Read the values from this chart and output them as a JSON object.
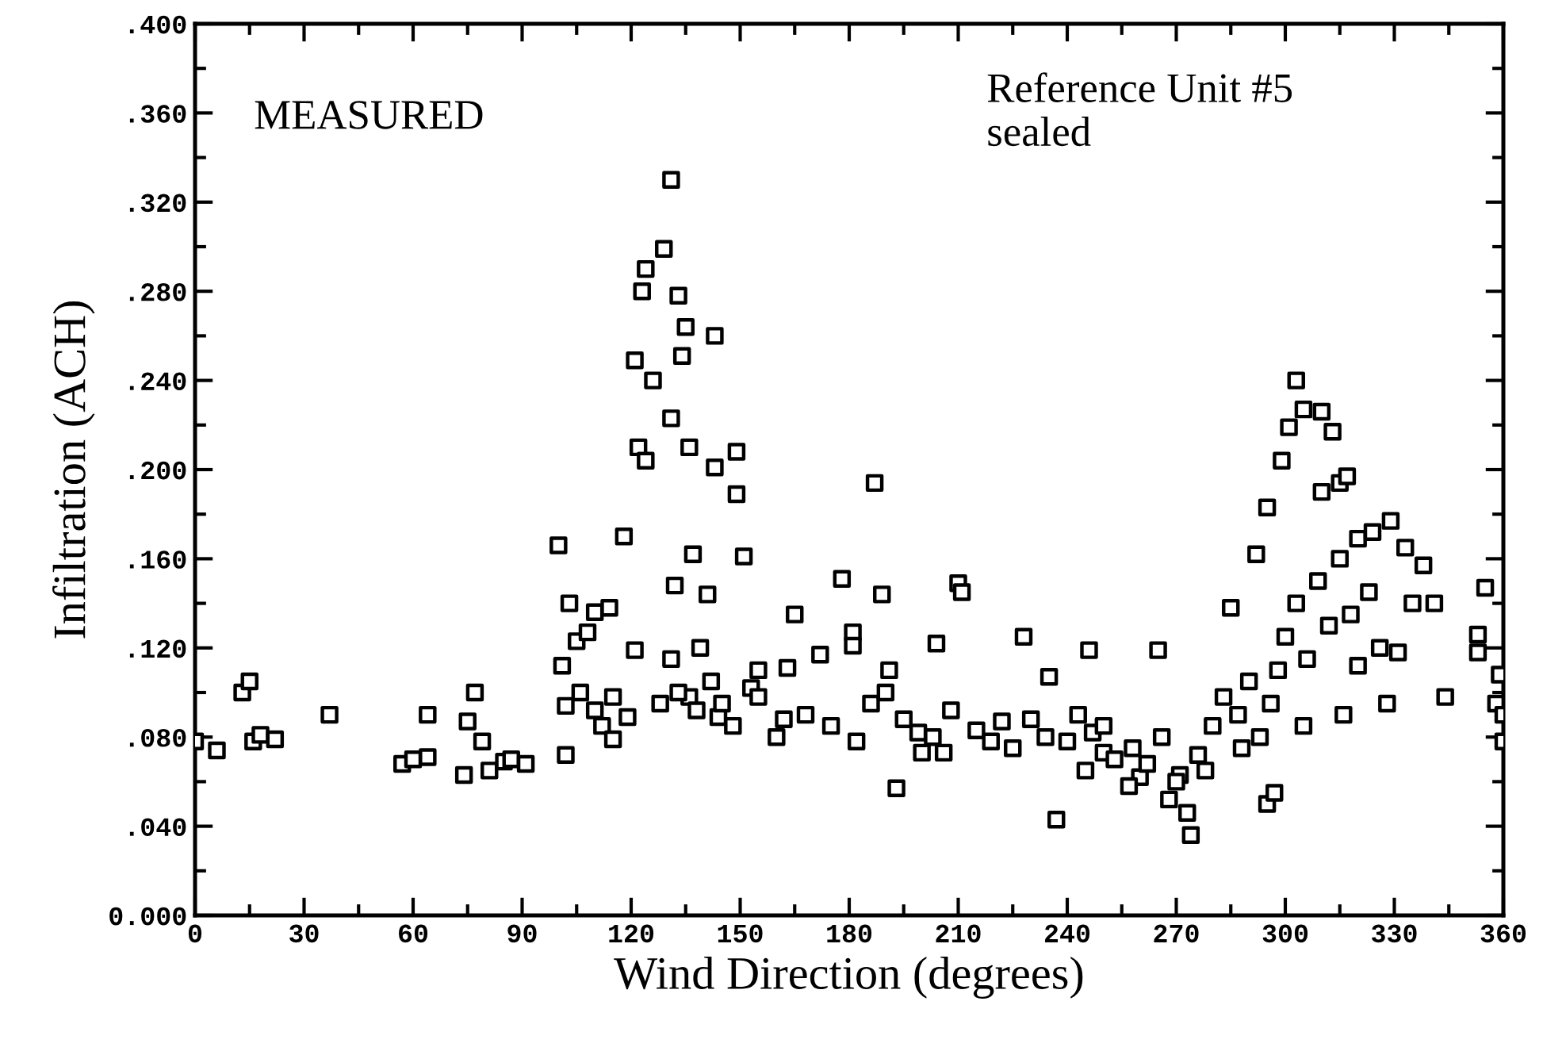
{
  "chart_data": {
    "type": "scatter",
    "xlabel": "Wind Direction (degrees)",
    "ylabel": "Infiltration (ACH)",
    "annotations": [
      "MEASURED",
      "Reference Unit #5\nsealed"
    ],
    "marker": "square",
    "grid": false,
    "xlim": [
      0,
      360
    ],
    "xticks": [
      0,
      30,
      60,
      90,
      120,
      150,
      180,
      210,
      240,
      270,
      300,
      330,
      360
    ],
    "ylim": [
      0,
      0.4
    ],
    "yticks": [
      {
        "value": 0,
        "label": "0.000"
      },
      {
        "value": 0.04,
        "label": ".040"
      },
      {
        "value": 0.08,
        "label": ".080"
      },
      {
        "value": 0.12,
        "label": ".120"
      },
      {
        "value": 0.16,
        "label": ".160"
      },
      {
        "value": 0.2,
        "label": ".200"
      },
      {
        "value": 0.24,
        "label": ".240"
      },
      {
        "value": 0.28,
        "label": ".280"
      },
      {
        "value": 0.32,
        "label": ".320"
      },
      {
        "value": 0.36,
        "label": ".360"
      },
      {
        "value": 0.4,
        "label": ".400"
      }
    ],
    "series": [
      {
        "color": "#000000",
        "x": [
          0,
          6,
          13,
          15,
          16,
          18,
          22,
          37,
          57,
          60,
          64,
          64,
          74,
          75,
          77,
          79,
          81,
          85,
          87,
          91,
          100,
          101,
          102,
          103,
          102,
          105,
          106,
          108,
          110,
          112,
          114,
          115,
          118,
          119,
          121,
          121,
          122,
          123,
          124,
          124,
          126,
          129,
          131,
          131,
          132,
          133,
          134,
          135,
          136,
          137,
          136,
          141,
          143,
          143,
          142,
          144,
          149,
          149,
          151,
          153,
          155,
          155,
          162,
          163,
          165,
          172,
          178,
          181,
          181,
          187,
          189,
          191,
          193,
          204,
          210,
          211,
          200,
          206,
          222,
          228,
          235,
          246,
          237,
          247,
          250,
          260,
          265,
          271,
          274,
          273,
          285,
          292,
          295,
          297,
          295,
          299,
          301,
          303,
          305,
          310,
          310,
          313,
          315,
          317,
          320,
          324,
          329,
          333,
          335,
          338,
          341,
          344,
          353,
          353,
          355,
          358,
          360,
          359,
          360,
          245,
          253,
          258,
          262,
          266,
          270,
          276,
          280,
          283,
          287,
          290,
          293,
          298,
          300,
          303,
          306,
          309,
          312,
          315,
          318,
          320,
          323,
          326,
          328,
          331,
          316,
          305,
          296,
          288,
          278,
          268,
          257,
          250,
          160,
          168,
          175,
          182,
          186,
          190,
          195,
          199,
          203,
          208,
          215,
          219,
          225,
          230,
          234,
          240,
          243,
          128,
          133,
          138,
          145,
          148,
          131,
          139,
          110,
          115
        ],
        "values": [
          0.078,
          0.074,
          0.1,
          0.105,
          0.078,
          0.081,
          0.079,
          0.09,
          0.068,
          0.07,
          0.09,
          0.071,
          0.063,
          0.087,
          0.1,
          0.078,
          0.065,
          0.069,
          0.07,
          0.068,
          0.166,
          0.112,
          0.072,
          0.14,
          0.094,
          0.123,
          0.1,
          0.127,
          0.136,
          0.085,
          0.138,
          0.079,
          0.17,
          0.089,
          0.119,
          0.249,
          0.21,
          0.28,
          0.29,
          0.204,
          0.24,
          0.299,
          0.223,
          0.33,
          0.148,
          0.278,
          0.251,
          0.264,
          0.21,
          0.162,
          0.098,
          0.144,
          0.26,
          0.201,
          0.105,
          0.089,
          0.208,
          0.189,
          0.161,
          0.102,
          0.098,
          0.11,
          0.088,
          0.111,
          0.135,
          0.117,
          0.151,
          0.127,
          0.121,
          0.194,
          0.144,
          0.11,
          0.057,
          0.122,
          0.149,
          0.145,
          0.073,
          0.073,
          0.087,
          0.125,
          0.107,
          0.119,
          0.043,
          0.082,
          0.073,
          0.062,
          0.119,
          0.063,
          0.036,
          0.046,
          0.138,
          0.162,
          0.05,
          0.055,
          0.183,
          0.204,
          0.219,
          0.24,
          0.227,
          0.226,
          0.19,
          0.217,
          0.194,
          0.197,
          0.169,
          0.172,
          0.177,
          0.165,
          0.14,
          0.157,
          0.14,
          0.098,
          0.126,
          0.118,
          0.147,
          0.095,
          0.078,
          0.108,
          0.09,
          0.065,
          0.07,
          0.075,
          0.068,
          0.08,
          0.06,
          0.072,
          0.085,
          0.098,
          0.09,
          0.105,
          0.08,
          0.11,
          0.125,
          0.14,
          0.115,
          0.15,
          0.13,
          0.16,
          0.135,
          0.112,
          0.145,
          0.12,
          0.095,
          0.118,
          0.09,
          0.085,
          0.095,
          0.075,
          0.065,
          0.052,
          0.058,
          0.085,
          0.08,
          0.09,
          0.085,
          0.078,
          0.095,
          0.1,
          0.088,
          0.082,
          0.08,
          0.092,
          0.083,
          0.078,
          0.075,
          0.088,
          0.08,
          0.078,
          0.09,
          0.095,
          0.1,
          0.092,
          0.095,
          0.085,
          0.115,
          0.12,
          0.092,
          0.098
        ]
      }
    ]
  }
}
